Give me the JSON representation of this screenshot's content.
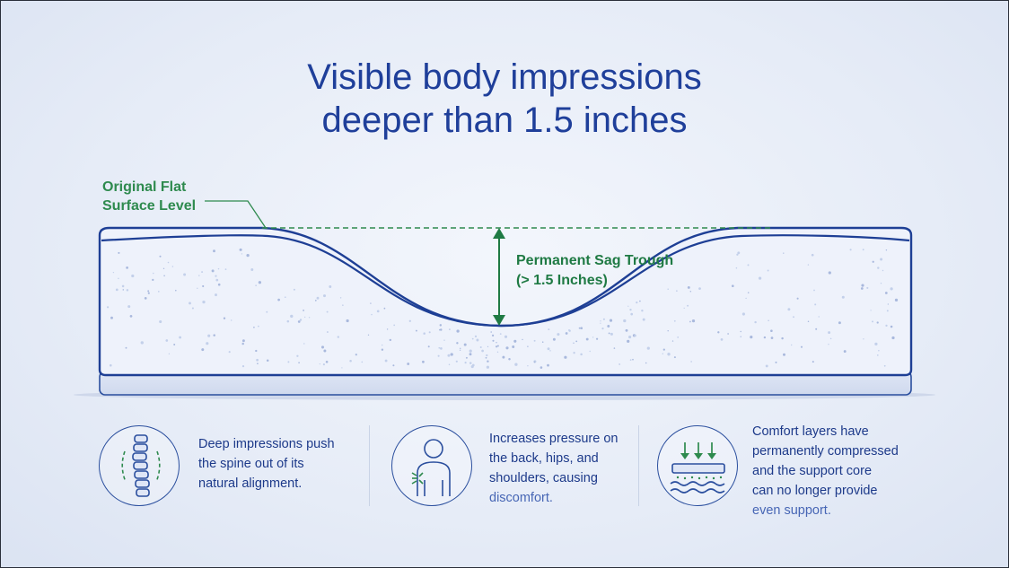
{
  "title": {
    "line1": "Visible body impressions",
    "line2": "deeper than 1.5 inches"
  },
  "labels": {
    "original_flat": [
      "Original Flat",
      "Surface Level"
    ],
    "sag_trough": [
      "Permanent Sag Trough",
      "(> 1.5 Inches)"
    ]
  },
  "colors": {
    "title": "#1f3f9a",
    "outline": "#1e3f95",
    "green": "#2e8a4e",
    "mattress_fill": "#eef2fb"
  },
  "features": [
    {
      "icon": "spine-icon",
      "lines": [
        "Deep impressions push",
        "the spine out of its",
        "natural alignment."
      ]
    },
    {
      "icon": "person-pain-icon",
      "lines": [
        "Increases pressure on",
        "the back, hips, and",
        "shoulders, causing",
        "discomfort."
      ]
    },
    {
      "icon": "compressed-layers-icon",
      "lines": [
        "Comfort layers have",
        "permanently compressed",
        "and the support core",
        "can no longer provide",
        "even support."
      ]
    }
  ]
}
